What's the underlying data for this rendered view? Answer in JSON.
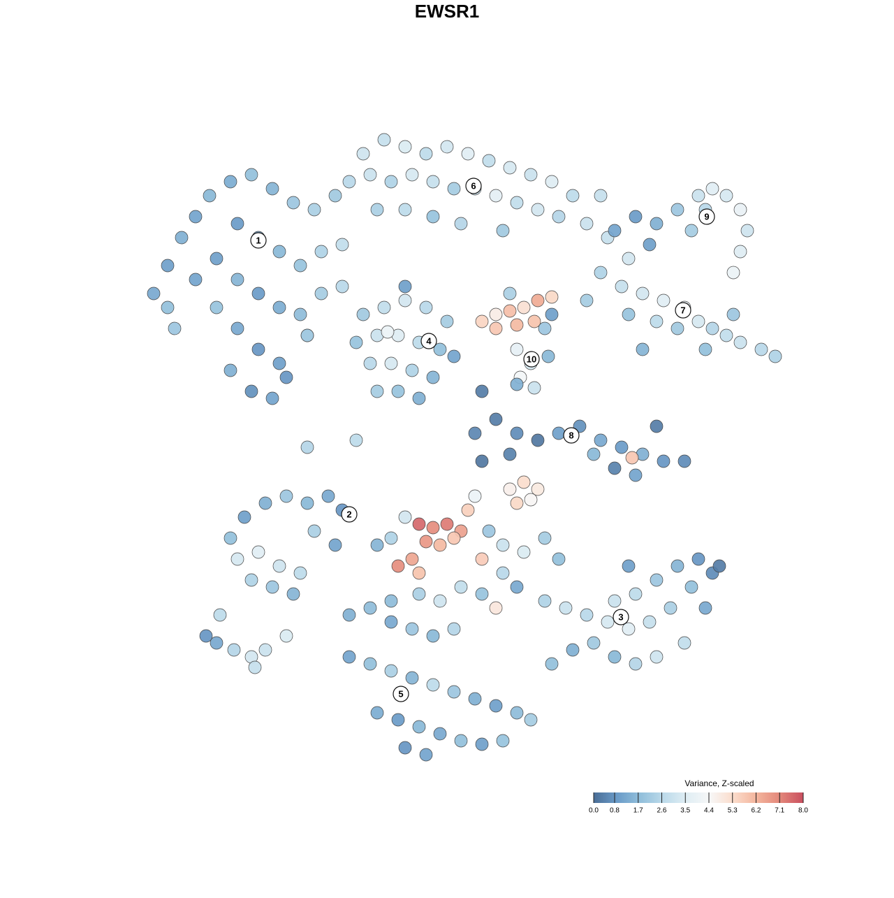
{
  "chart_data": {
    "type": "scatter",
    "title": "EWSR1",
    "xlim": [
      0,
      100
    ],
    "ylim": [
      0,
      100
    ],
    "x": [
      8,
      10,
      12,
      14,
      16,
      19,
      22,
      25,
      28,
      31,
      34,
      20,
      23,
      26,
      29,
      32,
      35,
      17,
      20,
      23,
      26,
      29,
      14,
      17,
      20,
      23,
      26,
      19,
      22,
      25,
      10,
      32,
      35,
      30,
      27,
      11,
      38,
      41,
      44,
      47,
      50,
      53,
      56,
      59,
      62,
      65,
      68,
      36,
      39,
      42,
      45,
      48,
      51,
      54,
      57,
      60,
      63,
      66,
      70,
      40,
      44,
      48,
      52,
      58,
      73,
      76,
      74,
      77,
      80,
      83,
      86,
      88,
      90,
      92,
      93,
      92,
      91,
      87,
      79,
      85,
      72,
      75,
      78,
      81,
      84,
      86,
      88,
      90,
      92,
      95,
      97,
      83,
      80,
      76,
      70,
      87,
      91,
      78,
      38,
      41,
      44,
      47,
      50,
      37,
      40,
      43,
      46,
      49,
      51,
      39,
      42,
      45,
      48,
      40,
      43,
      46,
      44,
      41.5,
      55,
      57,
      59,
      61,
      63,
      65,
      57,
      60,
      62.5,
      60,
      62,
      60.5,
      62.5,
      64.5,
      59,
      64,
      54,
      57,
      60,
      63,
      66,
      69,
      72,
      75,
      78,
      81,
      84,
      77,
      74,
      80,
      71,
      55,
      59,
      76.5,
      21,
      24,
      27,
      30,
      33,
      35,
      20,
      23,
      26,
      29,
      22,
      25,
      28,
      31,
      19,
      34,
      46,
      48,
      50,
      52,
      47,
      49,
      51,
      45,
      43,
      46,
      55,
      53,
      44,
      42,
      54,
      59,
      61,
      63,
      60,
      62,
      40,
      56,
      58,
      61,
      64,
      66,
      58,
      55,
      52,
      49,
      46,
      42,
      57,
      60,
      64,
      67,
      70,
      73,
      76,
      79,
      82,
      85,
      88,
      89,
      86,
      83,
      80,
      77,
      74,
      71,
      74,
      77,
      80,
      68,
      65,
      84,
      87,
      76,
      36,
      39,
      42,
      45,
      48,
      51,
      36,
      39,
      42,
      45,
      48,
      51,
      54,
      57,
      60,
      40,
      43,
      46,
      49,
      52,
      55,
      44,
      47,
      58,
      62,
      15.5,
      17,
      19.5,
      22,
      22.5,
      24,
      27,
      17.5,
      30,
      37,
      30,
      60,
      55,
      72,
      65
    ],
    "y": [
      72,
      76,
      80,
      83,
      86,
      88,
      89,
      87,
      85,
      84,
      86,
      82,
      80,
      78,
      76,
      78,
      79,
      77,
      74,
      72,
      70,
      69,
      74,
      70,
      67,
      64,
      62,
      61,
      58,
      57,
      70,
      72,
      73,
      66,
      60,
      67,
      92,
      94,
      93,
      92,
      93,
      92,
      91,
      90,
      89,
      88,
      86,
      88,
      89,
      88,
      89,
      88,
      87,
      87,
      86,
      85,
      84,
      83,
      82,
      84,
      84,
      83,
      82,
      81,
      80,
      77,
      81,
      83,
      82,
      84,
      86,
      87,
      86,
      84,
      81,
      78,
      75,
      84,
      79,
      81,
      75,
      73,
      72,
      71,
      70,
      68,
      67,
      66,
      65,
      64,
      63,
      67,
      68,
      69,
      71,
      64,
      69,
      64,
      69,
      70,
      71,
      70,
      68,
      65,
      66,
      66,
      65,
      64,
      63,
      62,
      62,
      61,
      60,
      58,
      58,
      57,
      73,
      66.5,
      68,
      69,
      69.5,
      70,
      71,
      71.5,
      67,
      67.5,
      68,
      64,
      62,
      60,
      58.5,
      63,
      72,
      67,
      52,
      54,
      52,
      51,
      52,
      53,
      51,
      50,
      49,
      48,
      48,
      46,
      47,
      53,
      49,
      48,
      49,
      48.5,
      40,
      42,
      43,
      42,
      43,
      41,
      34,
      35,
      33,
      32,
      31,
      30,
      29,
      38,
      37,
      36,
      39,
      38.5,
      39,
      38,
      36.5,
      36,
      37,
      34,
      33,
      32,
      34,
      41,
      40,
      37,
      43,
      44,
      45,
      44,
      42,
      42.5,
      36,
      38,
      36,
      35,
      37,
      34,
      32,
      29,
      30,
      28,
      29,
      28,
      27,
      30,
      28,
      27,
      26,
      25,
      24,
      25,
      27,
      30,
      32,
      33,
      34,
      33,
      31,
      29,
      28,
      22,
      20,
      19,
      20,
      21,
      19,
      22,
      27,
      33,
      26,
      27,
      25,
      24,
      23,
      24,
      20,
      19,
      18,
      17,
      16,
      15,
      14,
      13,
      12,
      12,
      11,
      10,
      9,
      8,
      7.5,
      7,
      6,
      8,
      11,
      23,
      22,
      21,
      20,
      18.5,
      21,
      23,
      26,
      50,
      51,
      66,
      59,
      58,
      86,
      69
    ],
    "values": [
      1.2,
      1.0,
      1.4,
      1.1,
      1.6,
      1.3,
      1.8,
      1.5,
      2.0,
      2.3,
      2.1,
      0.9,
      1.2,
      1.6,
      1.9,
      2.4,
      2.8,
      1.0,
      1.5,
      0.9,
      1.3,
      1.7,
      1.1,
      1.9,
      1.2,
      0.8,
      1.0,
      1.4,
      0.7,
      1.1,
      1.8,
      2.2,
      2.6,
      1.4,
      0.8,
      2.0,
      3.1,
      2.9,
      3.4,
      2.7,
      3.2,
      3.6,
      2.8,
      3.3,
      3.0,
      3.5,
      2.7,
      2.6,
      3.0,
      2.4,
      3.3,
      2.9,
      2.2,
      3.1,
      3.7,
      2.8,
      3.2,
      2.5,
      3.0,
      2.3,
      2.7,
      1.9,
      2.5,
      2.1,
      2.9,
      3.2,
      1.1,
      0.9,
      1.4,
      2.0,
      3.0,
      3.6,
      3.3,
      3.9,
      3.1,
      3.5,
      4.0,
      2.6,
      1.0,
      2.2,
      2.4,
      2.9,
      3.2,
      3.6,
      3.9,
      3.3,
      2.5,
      2.8,
      3.0,
      2.6,
      2.4,
      2.1,
      2.7,
      1.9,
      2.2,
      1.8,
      2.0,
      1.5,
      2.1,
      2.8,
      3.2,
      2.6,
      2.2,
      1.9,
      3.0,
      3.5,
      2.7,
      1.8,
      1.1,
      2.6,
      3.3,
      2.4,
      1.5,
      2.2,
      1.9,
      1.4,
      1.0,
      4.0,
      5.5,
      4.8,
      6.0,
      5.2,
      6.4,
      5.4,
      5.8,
      6.1,
      5.9,
      3.8,
      3.3,
      4.3,
      3.0,
      1.6,
      2.3,
      2.0,
      0.5,
      0.3,
      0.6,
      0.2,
      1.0,
      0.7,
      1.2,
      0.9,
      1.4,
      0.8,
      0.6,
      1.1,
      0.4,
      0.3,
      1.6,
      0.2,
      0.4,
      5.8,
      1.0,
      1.4,
      2.0,
      1.6,
      1.2,
      0.8,
      3.3,
      3.6,
      3.1,
      2.7,
      2.4,
      2.0,
      1.5,
      2.3,
      1.8,
      1.1,
      7.6,
      7.0,
      7.3,
      6.6,
      6.8,
      6.1,
      5.8,
      6.5,
      7.0,
      5.9,
      5.7,
      5.6,
      3.2,
      2.4,
      4.0,
      4.7,
      5.3,
      4.9,
      5.4,
      4.5,
      1.5,
      2.0,
      3.0,
      3.4,
      2.2,
      1.8,
      2.6,
      1.9,
      2.8,
      3.1,
      2.3,
      1.7,
      5.0,
      1.2,
      2.4,
      3.0,
      2.6,
      3.3,
      3.6,
      2.9,
      2.3,
      1.8,
      0.6,
      0.3,
      0.8,
      1.5,
      2.0,
      2.7,
      3.0,
      2.1,
      1.6,
      2.5,
      3.1,
      1.4,
      1.8,
      2.8,
      1.2,
      1.0,
      1.4,
      1.7,
      1.2,
      2.0,
      1.6,
      2.5,
      1.1,
      1.8,
      2.3,
      1.5,
      2.7,
      2.0,
      1.4,
      1.0,
      1.7,
      1.3,
      0.9,
      1.6,
      1.2,
      1.8,
      1.0,
      0.8,
      1.1,
      1.9,
      2.2,
      0.8,
      1.2,
      2.5,
      3.2,
      2.9,
      3.0,
      3.4,
      2.7,
      2.5,
      2.7,
      2.2,
      1.4,
      0.3,
      2.9,
      1.0
    ],
    "clusters": [
      {
        "label": "1",
        "x": 23,
        "y": 79.6
      },
      {
        "label": "2",
        "x": 36,
        "y": 40.4
      },
      {
        "label": "3",
        "x": 74.9,
        "y": 25.7
      },
      {
        "label": "4",
        "x": 47.4,
        "y": 65.2
      },
      {
        "label": "5",
        "x": 43.4,
        "y": 14.7
      },
      {
        "label": "6",
        "x": 53.8,
        "y": 87.4
      },
      {
        "label": "7",
        "x": 83.8,
        "y": 69.6
      },
      {
        "label": "8",
        "x": 67.8,
        "y": 51.7
      },
      {
        "label": "9",
        "x": 87.2,
        "y": 83
      },
      {
        "label": "10",
        "x": 62.1,
        "y": 62.6
      }
    ],
    "colorbar": {
      "title": "Variance, Z-scaled",
      "lim": [
        0,
        8
      ],
      "ticks": [
        {
          "value": 0,
          "label": "0.0"
        },
        0.8,
        1.7,
        2.6,
        3.5,
        4.4,
        5.3,
        6.2,
        7.1,
        {
          "value": 8,
          "label": "8.0"
        }
      ],
      "colors": [
        "#4a6d96",
        "#6a9bc8",
        "#91bfdb",
        "#bcdaea",
        "#e0eef4",
        "#f7f7f7",
        "#fbdccb",
        "#f3b49c",
        "#e3877a",
        "#c94f5f"
      ]
    }
  }
}
